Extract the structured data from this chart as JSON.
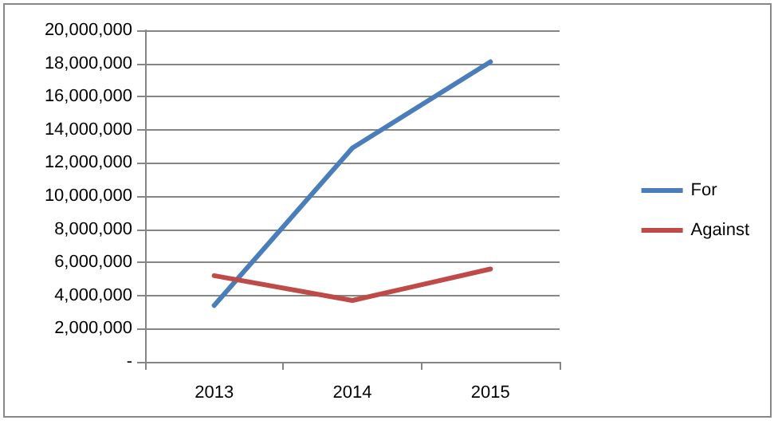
{
  "chart_data": {
    "type": "line",
    "categories": [
      "2013",
      "2014",
      "2015"
    ],
    "series": [
      {
        "name": "For",
        "color": "#4a7ebb",
        "values": [
          3400000,
          12900000,
          18100000
        ]
      },
      {
        "name": "Against",
        "color": "#be4b48",
        "values": [
          5200000,
          3700000,
          5600000
        ]
      }
    ],
    "ylim": [
      0,
      20000000
    ],
    "yticks": [
      {
        "value": 0,
        "label": "-"
      },
      {
        "value": 2000000,
        "label": "2,000,000"
      },
      {
        "value": 4000000,
        "label": "4,000,000"
      },
      {
        "value": 6000000,
        "label": "6,000,000"
      },
      {
        "value": 8000000,
        "label": "8,000,000"
      },
      {
        "value": 10000000,
        "label": "10,000,000"
      },
      {
        "value": 12000000,
        "label": "12,000,000"
      },
      {
        "value": 14000000,
        "label": "14,000,000"
      },
      {
        "value": 16000000,
        "label": "16,000,000"
      },
      {
        "value": 18000000,
        "label": "18,000,000"
      },
      {
        "value": 20000000,
        "label": "20,000,000"
      }
    ],
    "grid": "y",
    "legend": "right",
    "marker": "none",
    "line_style": "solid"
  }
}
